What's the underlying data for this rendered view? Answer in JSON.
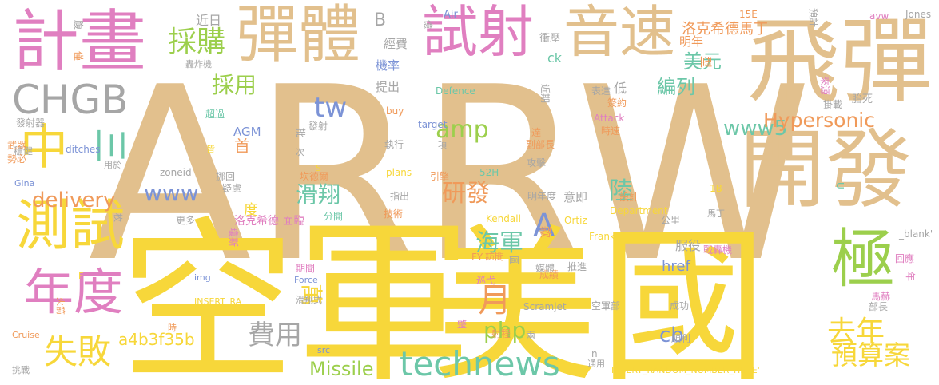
{
  "palette": {
    "tan": "#e2c08d",
    "yellow": "#f7d73a",
    "pink": "#e07fc0",
    "green": "#9ccf4c",
    "teal": "#6cc7a8",
    "orange": "#f09a5a",
    "blue": "#7c93d6",
    "gray": "#a6a6a6"
  },
  "words": [
    {
      "text": "ARRW",
      "color": "tan"
    },
    {
      "text": "空軍",
      "color": "yellow"
    },
    {
      "text": "美國",
      "color": "yellow"
    },
    {
      "text": "飛彈",
      "color": "tan"
    },
    {
      "text": "開發",
      "color": "tan"
    },
    {
      "text": "計畫",
      "color": "pink"
    },
    {
      "text": "彈體",
      "color": "tan"
    },
    {
      "text": "試射",
      "color": "pink"
    },
    {
      "text": "音速",
      "color": "tan"
    },
    {
      "text": "測試",
      "color": "yellow"
    },
    {
      "text": "年度",
      "color": "pink"
    },
    {
      "text": "極",
      "color": "green"
    },
    {
      "text": "中",
      "color": "yellow"
    },
    {
      "text": "三",
      "color": "teal"
    },
    {
      "text": "CHGB",
      "color": "gray"
    },
    {
      "text": "technews",
      "color": "teal"
    },
    {
      "text": "失敗",
      "color": "yellow"
    },
    {
      "text": "去年",
      "color": "yellow"
    },
    {
      "text": "預算案",
      "color": "yellow"
    },
    {
      "text": "月",
      "color": "orange"
    },
    {
      "text": "採購",
      "color": "green"
    },
    {
      "text": "www5",
      "color": "teal"
    },
    {
      "text": "Hypersonic",
      "color": "orange"
    },
    {
      "text": "tw",
      "color": "blue"
    },
    {
      "text": "amp",
      "color": "green"
    },
    {
      "text": "費用",
      "color": "gray"
    },
    {
      "text": "php",
      "color": "green"
    },
    {
      "text": "研發",
      "color": "orange"
    },
    {
      "text": "滑翔",
      "color": "teal"
    },
    {
      "text": "海軍",
      "color": "teal"
    },
    {
      "text": "萬",
      "color": "yellow"
    },
    {
      "text": "delivery",
      "color": "orange"
    },
    {
      "text": "www",
      "color": "blue"
    },
    {
      "text": "採用",
      "color": "green"
    },
    {
      "text": "A",
      "color": "blue"
    },
    {
      "text": "cb",
      "color": "blue"
    },
    {
      "text": "Missile",
      "color": "green"
    },
    {
      "text": "a4b3f35b",
      "color": "yellow"
    },
    {
      "text": "美元",
      "color": "teal"
    },
    {
      "text": "編列",
      "color": "teal"
    },
    {
      "text": "陸",
      "color": "teal"
    },
    {
      "text": "首",
      "color": "orange"
    },
    {
      "text": "洛克希德馬丁",
      "color": "orange"
    },
    {
      "text": "明年",
      "color": "orange"
    },
    {
      "text": "型",
      "color": "orange"
    },
    {
      "text": "ck",
      "color": "teal"
    },
    {
      "text": "href",
      "color": "blue"
    },
    {
      "text": "AGM",
      "color": "blue"
    },
    {
      "text": "服役",
      "color": "gray"
    },
    {
      "text": "低",
      "color": "gray"
    },
    {
      "text": "意即",
      "color": "gray"
    },
    {
      "text": "款",
      "color": "orange"
    },
    {
      "text": "機率",
      "color": "blue"
    },
    {
      "text": "提出",
      "color": "gray"
    },
    {
      "text": "經費",
      "color": "gray"
    },
    {
      "text": "近日",
      "color": "gray"
    },
    {
      "text": "B",
      "color": "gray"
    },
    {
      "text": "億",
      "color": "gray"
    },
    {
      "text": "Air",
      "color": "blue"
    },
    {
      "text": "15E",
      "color": "orange"
    },
    {
      "text": "預計",
      "color": "gray"
    },
    {
      "text": "avw",
      "color": "pink"
    },
    {
      "text": "Jones",
      "color": "gray"
    },
    {
      "text": "衝壓",
      "color": "gray"
    },
    {
      "text": "表達",
      "color": "gray"
    },
    {
      "text": "簽約",
      "color": "orange"
    },
    {
      "text": "Attack",
      "color": "pink"
    },
    {
      "text": "時速",
      "color": "orange"
    },
    {
      "text": "近期",
      "color": "gray"
    },
    {
      "text": "Defence",
      "color": "teal"
    },
    {
      "text": "buy",
      "color": "orange"
    },
    {
      "text": "target",
      "color": "blue"
    },
    {
      "text": "發射器",
      "color": "gray"
    },
    {
      "text": "超過",
      "color": "teal"
    },
    {
      "text": "批",
      "color": "gray"
    },
    {
      "text": "發射",
      "color": "gray"
    },
    {
      "text": "執行",
      "color": "gray"
    },
    {
      "text": "項",
      "color": "gray"
    },
    {
      "text": "達",
      "color": "orange"
    },
    {
      "text": "副部長",
      "color": "orange"
    },
    {
      "text": "攻擊",
      "color": "gray"
    },
    {
      "text": "來源",
      "color": "pink"
    },
    {
      "text": "掛載",
      "color": "gray"
    },
    {
      "text": "胎死",
      "color": "gray"
    },
    {
      "text": "腹",
      "color": "gray"
    },
    {
      "text": "僅",
      "color": "orange"
    },
    {
      "text": "轟炸機",
      "color": "gray"
    },
    {
      "text": "穩健",
      "color": "gray"
    },
    {
      "text": "ditches",
      "color": "blue"
    },
    {
      "text": "皆",
      "color": "yellow"
    },
    {
      "text": "S",
      "color": "yellow"
    },
    {
      "text": "武器",
      "color": "orange"
    },
    {
      "text": "勢必",
      "color": "orange"
    },
    {
      "text": "用於",
      "color": "gray"
    },
    {
      "text": "次",
      "color": "gray"
    },
    {
      "text": "zoneid",
      "color": "gray"
    },
    {
      "text": "plans",
      "color": "yellow"
    },
    {
      "text": "52H",
      "color": "teal"
    },
    {
      "text": "挪回",
      "color": "gray"
    },
    {
      "text": "疑慮",
      "color": "gray"
    },
    {
      "text": "坎德爾",
      "color": "orange"
    },
    {
      "text": "引擎",
      "color": "orange"
    },
    {
      "text": "明年度",
      "color": "gray"
    },
    {
      "text": "設計",
      "color": "orange"
    },
    {
      "text": "1B",
      "color": "yellow"
    },
    {
      "text": "U",
      "color": "teal"
    },
    {
      "text": "Gina",
      "color": "blue"
    },
    {
      "text": "更多",
      "color": "gray"
    },
    {
      "text": "度",
      "color": "yellow"
    },
    {
      "text": "指出",
      "color": "gray"
    },
    {
      "text": "Kendall",
      "color": "yellow"
    },
    {
      "text": "Ortiz",
      "color": "yellow"
    },
    {
      "text": "枚",
      "color": "gray"
    },
    {
      "text": "洛克希德 面臨",
      "color": "pink"
    },
    {
      "text": "分開",
      "color": "teal"
    },
    {
      "text": "技術",
      "color": "orange"
    },
    {
      "text": "Department",
      "color": "yellow"
    },
    {
      "text": "公里",
      "color": "gray"
    },
    {
      "text": "馬丁",
      "color": "gray"
    },
    {
      "text": "瓊斯",
      "color": "pink"
    },
    {
      "text": "Frank",
      "color": "yellow"
    },
    {
      "text": "_blank'",
      "color": "gray"
    },
    {
      "text": "FY",
      "color": "orange"
    },
    {
      "text": "訪問",
      "color": "orange"
    },
    {
      "text": "圖",
      "color": "gray"
    },
    {
      "text": "媒體",
      "color": "gray"
    },
    {
      "text": "戰轟機",
      "color": "pink"
    },
    {
      "text": "回應",
      "color": "pink"
    },
    {
      "text": "年",
      "color": "pink"
    },
    {
      "text": "期間",
      "color": "pink"
    },
    {
      "text": "推進",
      "color": "gray"
    },
    {
      "text": "img",
      "color": "blue"
    },
    {
      "text": "Force",
      "color": "blue"
    },
    {
      "text": "巡弋",
      "color": "pink"
    },
    {
      "text": "成績",
      "color": "orange"
    },
    {
      "text": "F",
      "color": "yellow"
    },
    {
      "text": "INSERT_RA",
      "color": "yellow"
    },
    {
      "text": "Scramjet",
      "color": "gray"
    },
    {
      "text": "馬赫",
      "color": "pink"
    },
    {
      "text": "部長",
      "color": "gray"
    },
    {
      "text": "滑翔式",
      "color": "gray"
    },
    {
      "text": "空軍部",
      "color": "gray"
    },
    {
      "text": "成功",
      "color": "gray"
    },
    {
      "text": "火箭",
      "color": "orange"
    },
    {
      "text": "Cruise",
      "color": "orange"
    },
    {
      "text": "時",
      "color": "orange"
    },
    {
      "text": "整",
      "color": "pink"
    },
    {
      "text": "射程",
      "color": "orange"
    },
    {
      "text": "兩",
      "color": "gray"
    },
    {
      "text": "順利",
      "color": "gray"
    },
    {
      "text": "src",
      "color": "blue"
    },
    {
      "text": "n",
      "color": "gray"
    },
    {
      "text": "挑戰",
      "color": "gray"
    },
    {
      "text": "通用",
      "color": "gray"
    },
    {
      "text": "INSERT_RANDOM_NUMBER_HERE'",
      "color": "yellow"
    }
  ]
}
